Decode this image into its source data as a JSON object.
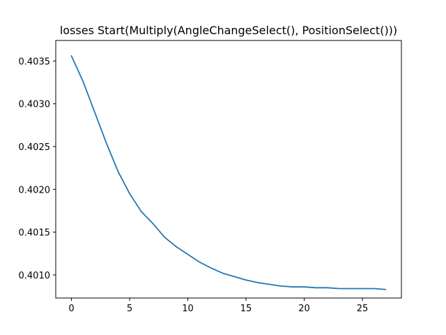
{
  "chart_data": {
    "type": "line",
    "title": "losses Start(Multiply(AngleChangeSelect(), PositionSelect()))",
    "xlabel": "",
    "ylabel": "",
    "xlim": [
      -1.35,
      28.35
    ],
    "ylim": [
      0.40073,
      0.40374
    ],
    "x_ticks": [
      0,
      5,
      10,
      15,
      20,
      25
    ],
    "y_ticks": [
      0.401,
      0.4015,
      0.402,
      0.4025,
      0.403,
      0.4035
    ],
    "y_tick_labels": [
      "0.4010",
      "0.4015",
      "0.4020",
      "0.4025",
      "0.4030",
      "0.4035"
    ],
    "grid": false,
    "series": [
      {
        "color": "#1f77b4",
        "x": [
          0,
          1,
          2,
          3,
          4,
          5,
          6,
          7,
          8,
          9,
          10,
          11,
          12,
          13,
          14,
          15,
          16,
          17,
          18,
          19,
          20,
          21,
          22,
          23,
          24,
          25,
          26,
          27
        ],
        "values": [
          0.40356,
          0.40326,
          0.4029,
          0.40254,
          0.40221,
          0.40195,
          0.40174,
          0.4016,
          0.40144,
          0.40133,
          0.40124,
          0.40115,
          0.40108,
          0.40102,
          0.40098,
          0.40094,
          0.40091,
          0.40089,
          0.40087,
          0.40086,
          0.40086,
          0.40085,
          0.40085,
          0.40084,
          0.40084,
          0.40084,
          0.40084,
          0.40083
        ]
      }
    ]
  }
}
